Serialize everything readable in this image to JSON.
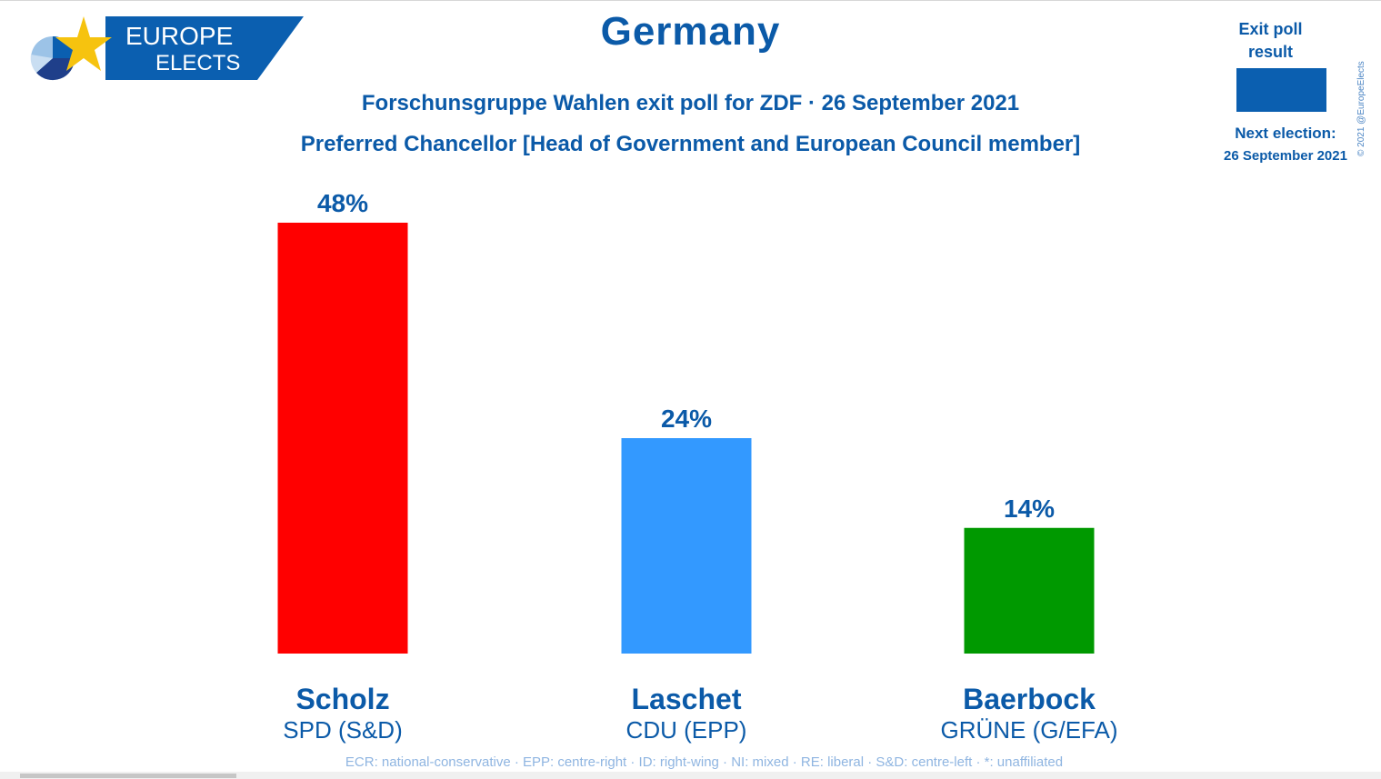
{
  "brand": {
    "line1": "EUROPE",
    "line2": "ELECTS",
    "banner_color": "#0b5fb0",
    "star_color": "#f6c30f"
  },
  "header": {
    "title": "Germany",
    "subtitle": "Forschunsgruppe Wahlen exit poll for ZDF · 26 September 2021",
    "question": "Preferred Chancellor [Head of Government and European Council member]"
  },
  "legend": {
    "label": "Exit poll result",
    "swatch_color": "#0b5fb0",
    "next_election_label": "Next election:",
    "next_election_date": "26 September 2021"
  },
  "copyright": "© 2021 @EuropeElects",
  "chart_data": {
    "type": "bar",
    "categories": [
      "Scholz",
      "Laschet",
      "Baerbock"
    ],
    "parties": [
      "SPD (S&D)",
      "CDU (EPP)",
      "GRÜNE (G/EFA)"
    ],
    "values": [
      48,
      24,
      14
    ],
    "value_labels": [
      "48%",
      "24%",
      "14%"
    ],
    "colors": [
      "#ff0000",
      "#3399ff",
      "#009900"
    ],
    "ylim": [
      0,
      48
    ],
    "grid": false,
    "text_color": "#0b5aa8"
  },
  "footer": "ECR: national-conservative · EPP: centre-right · ID: right-wing · NI: mixed · RE: liberal · S&D: centre-left · *: unaffiliated"
}
